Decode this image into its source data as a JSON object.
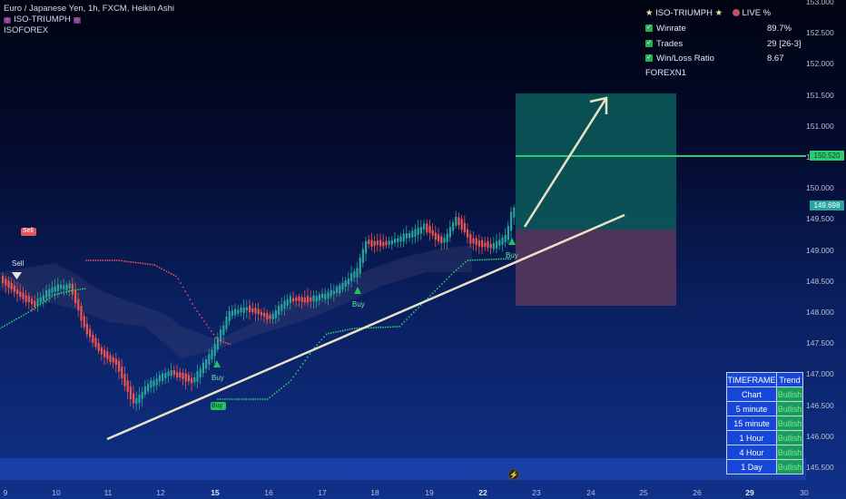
{
  "header": {
    "symbol_line": "Euro / Japanese Yen, 1h, FXCM, Heikin Ashi",
    "indicator_line": "ISO-TRIUMPH",
    "account_line": "ISOFOREX"
  },
  "stats": {
    "title": "ISO-TRIUMPH",
    "live_label": "LIVE %",
    "rows": [
      {
        "label": "Winrate",
        "value": "89.7%"
      },
      {
        "label": "Trades",
        "value": "29 [26-3]"
      },
      {
        "label": "Win/Loss Ratio",
        "value": "8.67"
      }
    ],
    "footer": "FOREXN1"
  },
  "y_axis": [
    "153.000",
    "152.500",
    "152.000",
    "151.500",
    "151.000",
    "150.500",
    "150.000",
    "149.500",
    "149.000",
    "148.500",
    "148.000",
    "147.500",
    "147.000",
    "146.500",
    "146.000",
    "145.500"
  ],
  "x_axis": [
    {
      "label": "9",
      "bold": false
    },
    {
      "label": "10",
      "bold": false
    },
    {
      "label": "11",
      "bold": false
    },
    {
      "label": "12",
      "bold": false
    },
    {
      "label": "15",
      "bold": true
    },
    {
      "label": "16",
      "bold": false
    },
    {
      "label": "17",
      "bold": false
    },
    {
      "label": "18",
      "bold": false
    },
    {
      "label": "19",
      "bold": false
    },
    {
      "label": "22",
      "bold": true
    },
    {
      "label": "23",
      "bold": false
    },
    {
      "label": "24",
      "bold": false
    },
    {
      "label": "25",
      "bold": false
    },
    {
      "label": "26",
      "bold": false
    },
    {
      "label": "29",
      "bold": true
    },
    {
      "label": "30",
      "bold": false
    }
  ],
  "price_labels": {
    "target": "150.520",
    "current": "149.698"
  },
  "signals": {
    "sell": "Sell",
    "buy": "Buy"
  },
  "timeframe_table": {
    "headers": [
      "TIMEFRAME",
      "Trend"
    ],
    "rows": [
      {
        "tf": "Chart",
        "trend": "Bullish"
      },
      {
        "tf": "5 minute",
        "trend": "Bullish"
      },
      {
        "tf": "15 minute",
        "trend": "Bullish"
      },
      {
        "tf": "1 Hour",
        "trend": "Bullish"
      },
      {
        "tf": "4 Hour",
        "trend": "Bullish"
      },
      {
        "tf": "1 Day",
        "trend": "Bullish"
      }
    ]
  },
  "colors": {
    "up": "#26a69a",
    "down": "#ef5350",
    "target_line": "#2ecc71",
    "profit_zone": "#0c5c5a",
    "loss_zone": "#5b3a5e"
  }
}
